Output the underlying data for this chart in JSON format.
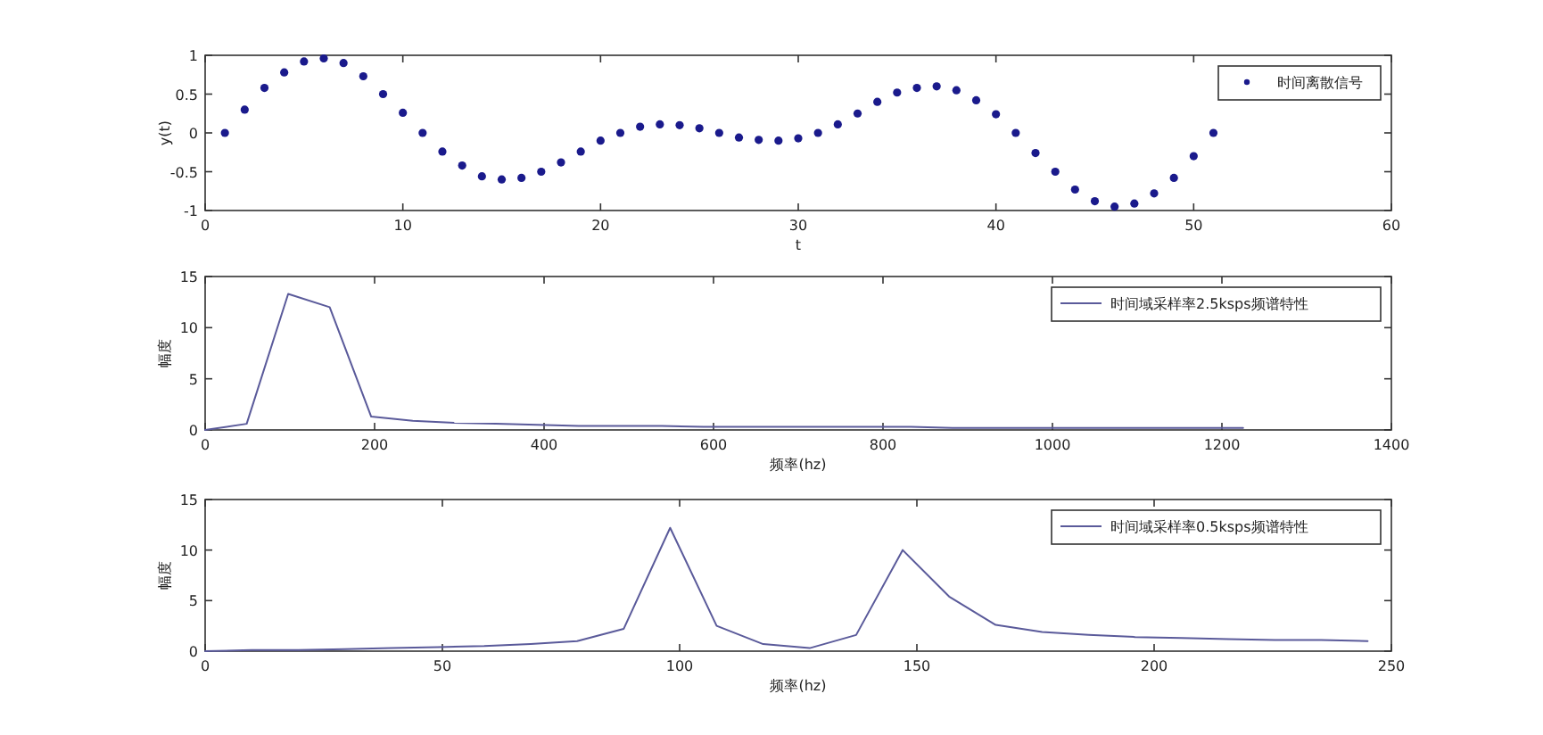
{
  "chart_data": [
    {
      "type": "scatter",
      "xlabel": "t",
      "ylabel": "y(t)",
      "xlim": [
        0,
        60
      ],
      "ylim": [
        -1,
        1
      ],
      "xticks": [
        0,
        10,
        20,
        30,
        40,
        50,
        60
      ],
      "yticks": [
        -1,
        -0.5,
        0,
        0.5,
        1
      ],
      "legend": "top right",
      "marker": "circle",
      "series": [
        {
          "name": "时间离散信号",
          "color": "#1a1a8c",
          "x": [
            1,
            2,
            3,
            4,
            5,
            6,
            7,
            8,
            9,
            10,
            11,
            12,
            13,
            14,
            15,
            16,
            17,
            18,
            19,
            20,
            21,
            22,
            23,
            24,
            25,
            26,
            27,
            28,
            29,
            30,
            31,
            32,
            33,
            34,
            35,
            36,
            37,
            38,
            39,
            40,
            41,
            42,
            43,
            44,
            45,
            46,
            47,
            48,
            49,
            50,
            51
          ],
          "values": [
            0,
            0.3,
            0.58,
            0.78,
            0.92,
            0.96,
            0.9,
            0.73,
            0.5,
            0.26,
            0,
            -0.24,
            -0.42,
            -0.56,
            -0.6,
            -0.58,
            -0.5,
            -0.38,
            -0.24,
            -0.1,
            0,
            0.08,
            0.11,
            0.1,
            0.06,
            0,
            -0.06,
            -0.09,
            -0.1,
            -0.07,
            0,
            0.11,
            0.25,
            0.4,
            0.52,
            0.58,
            0.6,
            0.55,
            0.42,
            0.24,
            0,
            -0.26,
            -0.5,
            -0.73,
            -0.88,
            -0.95,
            -0.91,
            -0.78,
            -0.58,
            -0.3,
            0
          ]
        }
      ]
    },
    {
      "type": "line",
      "xlabel": "频率(hz)",
      "ylabel": "幅度",
      "xlim": [
        0,
        1400
      ],
      "ylim": [
        0,
        15
      ],
      "xticks": [
        0,
        200,
        400,
        600,
        800,
        1000,
        1200,
        1400
      ],
      "yticks": [
        0,
        5,
        10,
        15
      ],
      "legend": "top right",
      "marker": "none",
      "line_style": "solid",
      "series": [
        {
          "name": "时间域采样率2.5ksps频谱特性",
          "color": "#5a5a9a",
          "x": [
            0,
            49,
            98,
            147,
            196,
            245,
            294,
            343,
            392,
            441,
            490,
            539,
            588,
            637,
            686,
            735,
            784,
            833,
            882,
            931,
            980,
            1029,
            1078,
            1127,
            1176,
            1225
          ],
          "values": [
            0,
            0.6,
            13.3,
            12,
            1.3,
            0.9,
            0.7,
            0.6,
            0.5,
            0.4,
            0.4,
            0.4,
            0.3,
            0.3,
            0.3,
            0.3,
            0.3,
            0.3,
            0.2,
            0.2,
            0.2,
            0.2,
            0.2,
            0.2,
            0.2,
            0.2
          ]
        }
      ]
    },
    {
      "type": "line",
      "xlabel": "频率(hz)",
      "ylabel": "幅度",
      "xlim": [
        0,
        250
      ],
      "ylim": [
        0,
        15
      ],
      "xticks": [
        0,
        50,
        100,
        150,
        200,
        250
      ],
      "yticks": [
        0,
        5,
        10,
        15
      ],
      "legend": "top right",
      "marker": "none",
      "line_style": "solid",
      "series": [
        {
          "name": "时间域采样率0.5ksps频谱特性",
          "color": "#5a5a9a",
          "x": [
            0,
            9.8,
            19.6,
            29.4,
            39.2,
            49,
            58.8,
            68.6,
            78.4,
            88.2,
            98,
            107.8,
            117.6,
            127.4,
            137.2,
            147,
            156.8,
            166.6,
            176.4,
            186.2,
            196,
            205.8,
            215.6,
            225.4,
            235.2,
            245
          ],
          "values": [
            0,
            0.1,
            0.1,
            0.2,
            0.3,
            0.4,
            0.5,
            0.7,
            1.0,
            2.2,
            12.2,
            2.5,
            0.7,
            0.3,
            1.6,
            10,
            5.4,
            2.6,
            1.9,
            1.6,
            1.4,
            1.3,
            1.2,
            1.1,
            1.1,
            1.0
          ]
        }
      ]
    }
  ]
}
